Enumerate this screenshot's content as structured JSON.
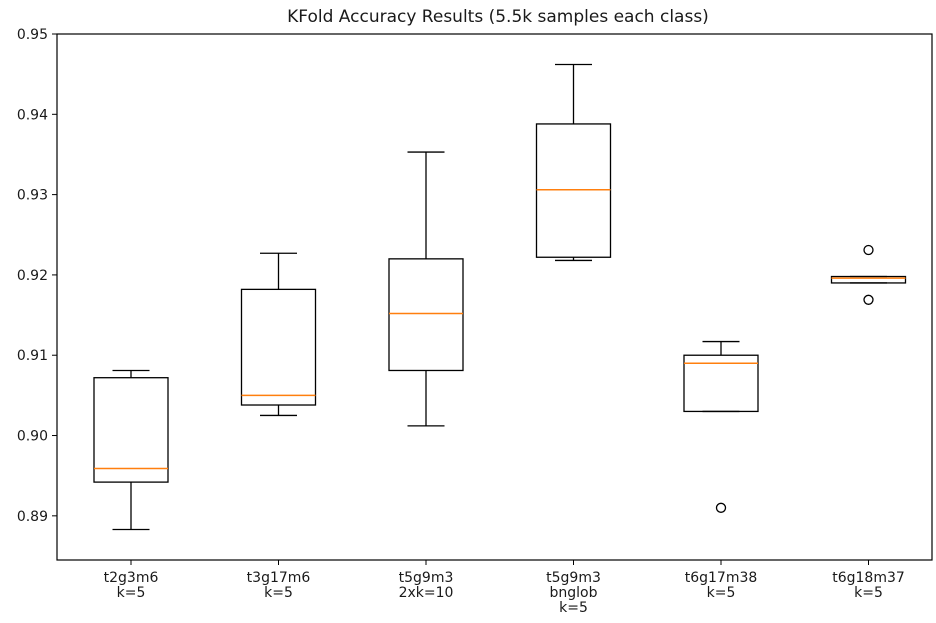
{
  "chart_data": {
    "type": "boxplot",
    "title": "KFold Accuracy Results (5.5k samples each class)",
    "xlabel": "",
    "ylabel": "",
    "ylim": [
      0.8845,
      0.95
    ],
    "yticks": [
      0.89,
      0.9,
      0.91,
      0.92,
      0.93,
      0.94,
      0.95
    ],
    "ytick_labels": [
      "0.89",
      "0.90",
      "0.91",
      "0.92",
      "0.93",
      "0.94",
      "0.95"
    ],
    "grid": false,
    "colors": {
      "box": "#000000",
      "median": "#ff7f0e",
      "axis": "#000000"
    },
    "categories": [
      [
        "t2g3m6",
        "k=5"
      ],
      [
        "t3g17m6",
        "k=5"
      ],
      [
        "t5g9m3",
        "2xk=10"
      ],
      [
        "t5g9m3",
        "bnglob",
        "k=5"
      ],
      [
        "t6g17m38",
        "k=5"
      ],
      [
        "t6g18m37",
        "k=5"
      ]
    ],
    "boxes": [
      {
        "whisker_low": 0.8883,
        "q1": 0.8942,
        "median": 0.8959,
        "q3": 0.9072,
        "whisker_high": 0.9081,
        "outliers": []
      },
      {
        "whisker_low": 0.9025,
        "q1": 0.9038,
        "median": 0.905,
        "q3": 0.9182,
        "whisker_high": 0.9227,
        "outliers": []
      },
      {
        "whisker_low": 0.9012,
        "q1": 0.9081,
        "median": 0.9152,
        "q3": 0.922,
        "whisker_high": 0.9353,
        "outliers": []
      },
      {
        "whisker_low": 0.9218,
        "q1": 0.9222,
        "median": 0.9306,
        "q3": 0.9388,
        "whisker_high": 0.9462,
        "outliers": []
      },
      {
        "whisker_low": 0.903,
        "q1": 0.903,
        "median": 0.909,
        "q3": 0.91,
        "whisker_high": 0.9117,
        "outliers": [
          0.891
        ]
      },
      {
        "whisker_low": 0.919,
        "q1": 0.919,
        "median": 0.9196,
        "q3": 0.9198,
        "whisker_high": 0.9198,
        "outliers": [
          0.9231,
          0.9169
        ]
      }
    ]
  }
}
